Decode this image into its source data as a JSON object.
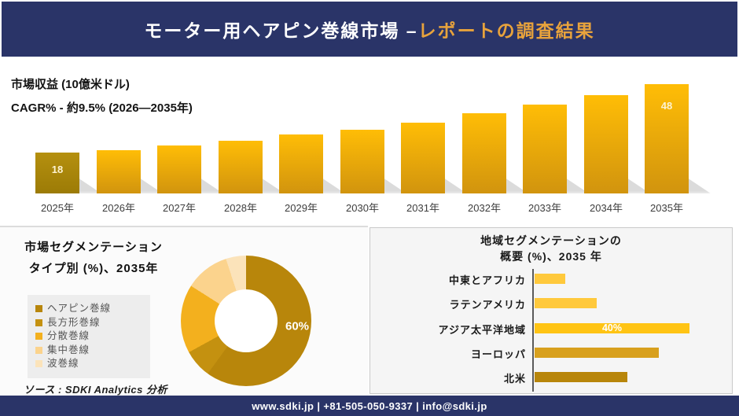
{
  "header": {
    "title_main": "モーター用ヘアピン巻線市場 –",
    "title_accent": "レポートの調査結果"
  },
  "type_section": {
    "title_line1": "市場セグメンテーション",
    "title_line2": "タイプ別 (%)、2035年",
    "source": "ソース : SDKI Analytics 分析"
  },
  "region_section": {
    "title_line1": "地域セグメンテーションの",
    "title_line2": "概要 (%)、2035 年"
  },
  "footer": {
    "contact": "www.sdki.jp | +81-505-050-9337 | info@sdki.jp"
  },
  "chart_data": [
    {
      "type": "bar",
      "title": "市場収益 (10億米ドル)",
      "annotation": "CAGR% - 約9.5% (2026―2035年)",
      "categories": [
        "2025年",
        "2026年",
        "2027年",
        "2028年",
        "2029年",
        "2030年",
        "2031年",
        "2032年",
        "2033年",
        "2034年",
        "2035年"
      ],
      "values": [
        18,
        19,
        21,
        23,
        26,
        28,
        31,
        35,
        39,
        43,
        48
      ],
      "data_labels": {
        "2025年": "18",
        "2035年": "48"
      },
      "ylim": [
        0,
        50
      ],
      "grid": false,
      "bar_color_top": "#FFBD06",
      "bar_color_bottom": "#D1940E",
      "first_bar_color": "#A8850C"
    },
    {
      "type": "pie",
      "donut": true,
      "title": "市場セグメンテーション タイプ別 (%)、2035年",
      "labels": [
        "ヘアピン巻線",
        "長方形巻線",
        "分散巻線",
        "集中巻線",
        "波巻線"
      ],
      "values": [
        60,
        7,
        17,
        11,
        5
      ],
      "colors": [
        "#B8860B",
        "#C49110",
        "#F3B01E",
        "#FBD38D",
        "#FBE3BA"
      ],
      "shown_label": "60%",
      "legend_position": "left"
    },
    {
      "type": "bar",
      "orientation": "horizontal",
      "title": "地域セグメンテーションの概要 (%)、2035 年",
      "categories": [
        "中東とアフリカ",
        "ラテンアメリカ",
        "アジア太平洋地域",
        "ヨーロッパ",
        "北米"
      ],
      "values": [
        8,
        16,
        40,
        32,
        24
      ],
      "colors": [
        "#FFC93C",
        "#FFC93C",
        "#FFC414",
        "#D8A01D",
        "#B8860B"
      ],
      "data_labels": {
        "アジア太平洋地域": "40%"
      },
      "xlim": [
        0,
        40
      ],
      "grid": false
    }
  ]
}
